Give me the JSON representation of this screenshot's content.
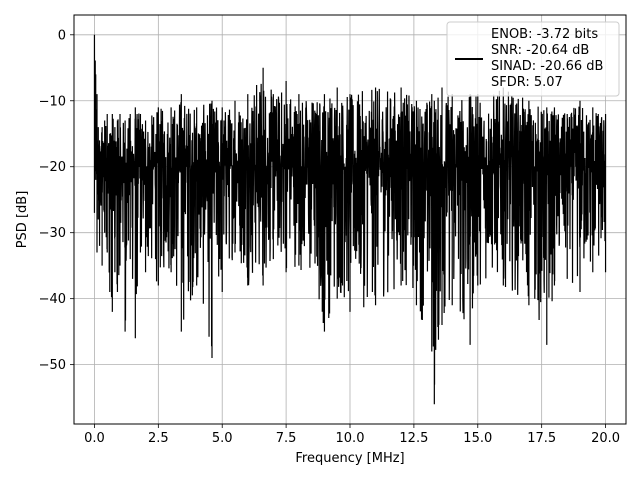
{
  "chart_data": {
    "type": "line",
    "title": "",
    "xlabel": "Frequency [MHz]",
    "ylabel": "PSD [dB]",
    "xlim": [
      -0.8,
      20.8
    ],
    "ylim": [
      -59,
      3
    ],
    "xticks": [
      0,
      2.5,
      5,
      7.5,
      10,
      12.5,
      15,
      17.5,
      20
    ],
    "xtick_labels": [
      "0.0",
      "2.5",
      "5.0",
      "7.5",
      "10.0",
      "12.5",
      "15.0",
      "17.5",
      "20.0"
    ],
    "yticks": [
      0,
      -10,
      -20,
      -30,
      -40,
      -50
    ],
    "ytick_labels": [
      "0",
      "−10",
      "−20",
      "−30",
      "−40",
      "−50"
    ],
    "grid": true,
    "legend_position": "top-right",
    "legend_lines": [
      "ENOB: -3.72 bits",
      "SNR: -20.64 dB",
      "SINAD: -20.66 dB",
      "SFDR: 5.07"
    ],
    "series": [
      {
        "color": "#000000",
        "description": "noise-like PSD trace centered near -20 dB",
        "x": [
          0,
          0.05,
          0.1,
          0.15,
          0.2,
          0.3,
          0.4,
          0.5,
          0.6,
          0.7,
          0.8,
          0.9,
          1.0,
          1.2,
          1.4,
          1.6,
          1.8,
          2.0,
          2.5,
          3.0,
          3.4,
          4.0,
          4.6,
          5.0,
          5.5,
          6.0,
          6.6,
          7.0,
          7.5,
          8.0,
          9.0,
          9.5,
          10.0,
          11.0,
          12.0,
          12.6,
          13.2,
          13.3,
          13.6,
          14.0,
          14.7,
          15.0,
          16.0,
          17.0,
          17.7,
          18.0,
          18.5,
          19.0,
          19.5,
          20.0
        ],
        "upper": [
          0,
          -6,
          -9,
          -14,
          -16,
          -14,
          -13,
          -12,
          -15,
          -12,
          -14,
          -13,
          -12,
          -13,
          -12,
          -11,
          -12,
          -13,
          -11,
          -11,
          -9,
          -11,
          -10,
          -11,
          -10,
          -9,
          -5,
          -9,
          -7,
          -9,
          -9,
          -8,
          -9,
          -8,
          -8,
          -10,
          -9,
          -10,
          -8,
          -9,
          -9,
          -9,
          -8,
          -10,
          -11,
          -11,
          -12,
          -10,
          -11,
          -12
        ],
        "lower": [
          -27,
          -22,
          -33,
          -28,
          -32,
          -35,
          -30,
          -33,
          -39,
          -42,
          -36,
          -39,
          -35,
          -45,
          -34,
          -46,
          -33,
          -36,
          -38,
          -36,
          -45,
          -38,
          -49,
          -39,
          -33,
          -38,
          -38,
          -34,
          -36,
          -35,
          -45,
          -40,
          -42,
          -41,
          -38,
          -41,
          -48,
          -56,
          -44,
          -41,
          -47,
          -38,
          -38,
          -41,
          -47,
          -38,
          -37,
          -39,
          -36,
          -36
        ]
      }
    ]
  }
}
